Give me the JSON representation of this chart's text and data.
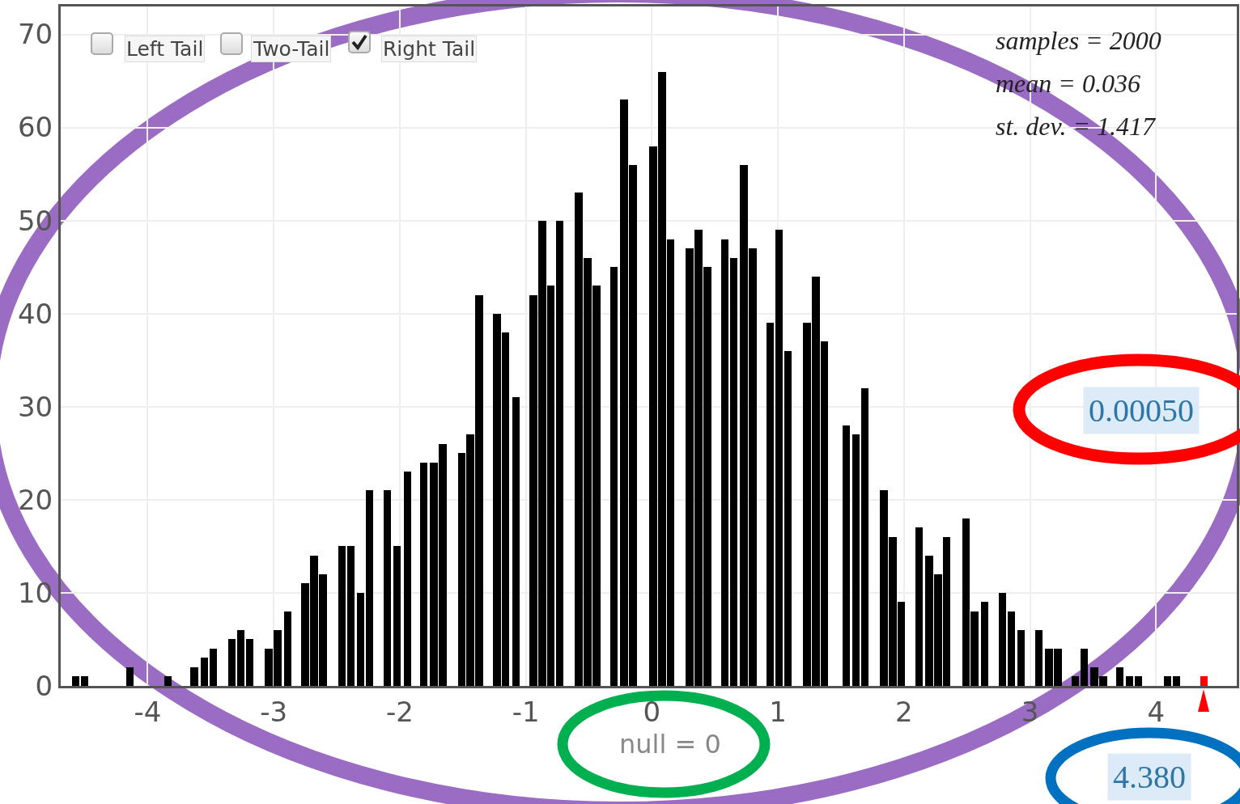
{
  "chart_data": {
    "type": "bar",
    "x": [
      -4.57,
      -4.5,
      -4.14,
      -3.84,
      -3.63,
      -3.55,
      -3.48,
      -3.33,
      -3.26,
      -3.19,
      -3.04,
      -2.97,
      -2.89,
      -2.75,
      -2.68,
      -2.61,
      -2.46,
      -2.39,
      -2.31,
      -2.24,
      -2.1,
      -2.02,
      -1.94,
      -1.81,
      -1.73,
      -1.66,
      -1.51,
      -1.44,
      -1.37,
      -1.23,
      -1.16,
      -1.08,
      -0.94,
      -0.87,
      -0.8,
      -0.73,
      -0.58,
      -0.51,
      -0.44,
      -0.3,
      -0.22,
      -0.15,
      0.01,
      0.08,
      0.15,
      0.3,
      0.37,
      0.44,
      0.58,
      0.65,
      0.73,
      0.8,
      0.94,
      1.01,
      1.08,
      1.23,
      1.3,
      1.37,
      1.54,
      1.62,
      1.69,
      1.84,
      1.91,
      1.98,
      2.12,
      2.2,
      2.27,
      2.34,
      2.49,
      2.56,
      2.64,
      2.78,
      2.85,
      2.93,
      3.07,
      3.15,
      3.22,
      3.36,
      3.43,
      3.51,
      3.58,
      3.71,
      3.79,
      3.86,
      4.09,
      4.16,
      4.38
    ],
    "values": [
      1,
      1,
      2,
      1,
      2,
      3,
      4,
      5,
      6,
      5,
      4,
      6,
      8,
      11,
      14,
      12,
      15,
      15,
      10,
      21,
      21,
      15,
      23,
      24,
      24,
      26,
      25,
      27,
      42,
      40,
      38,
      31,
      42,
      50,
      43,
      50,
      53,
      46,
      43,
      45,
      63,
      56,
      58,
      66,
      48,
      47,
      49,
      45,
      48,
      46,
      56,
      47,
      39,
      49,
      36,
      39,
      44,
      37,
      28,
      27,
      32,
      21,
      16,
      9,
      17,
      14,
      12,
      16,
      18,
      8,
      9,
      10,
      8,
      6,
      6,
      4,
      4,
      1,
      4,
      2,
      1,
      2,
      1,
      1,
      1,
      1,
      1
    ],
    "colors": [
      "#000000",
      "#000000",
      "#000000",
      "#000000",
      "#000000",
      "#000000",
      "#000000",
      "#000000",
      "#000000",
      "#000000",
      "#000000",
      "#000000",
      "#000000",
      "#000000",
      "#000000",
      "#000000",
      "#000000",
      "#000000",
      "#000000",
      "#000000",
      "#000000",
      "#000000",
      "#000000",
      "#000000",
      "#000000",
      "#000000",
      "#000000",
      "#000000",
      "#000000",
      "#000000",
      "#000000",
      "#000000",
      "#000000",
      "#000000",
      "#000000",
      "#000000",
      "#000000",
      "#000000",
      "#000000",
      "#000000",
      "#000000",
      "#000000",
      "#000000",
      "#000000",
      "#000000",
      "#000000",
      "#000000",
      "#000000",
      "#000000",
      "#000000",
      "#000000",
      "#000000",
      "#000000",
      "#000000",
      "#000000",
      "#000000",
      "#000000",
      "#000000",
      "#000000",
      "#000000",
      "#000000",
      "#000000",
      "#000000",
      "#000000",
      "#000000",
      "#000000",
      "#000000",
      "#000000",
      "#000000",
      "#000000",
      "#000000",
      "#000000",
      "#000000",
      "#000000",
      "#000000",
      "#000000",
      "#000000",
      "#000000",
      "#000000",
      "#000000",
      "#000000",
      "#000000",
      "#000000",
      "#000000",
      "#000000",
      "#000000",
      "#ff0000"
    ],
    "xlim": [
      -4.69,
      4.64
    ],
    "xticks": [
      -4,
      -3,
      -2,
      -1,
      0,
      1,
      2,
      3,
      4
    ],
    "ylim": [
      0,
      73
    ],
    "yticks": [
      0,
      10,
      20,
      30,
      40,
      50,
      60,
      70
    ],
    "grid": true,
    "legend": false,
    "annotations": [
      "Left Tail",
      "Two-Tail",
      "Right Tail",
      "samples = 2000",
      "mean = 0.036",
      "st. dev. = 1.417",
      "0.00050",
      "null = 0",
      "4.380"
    ]
  }
}
